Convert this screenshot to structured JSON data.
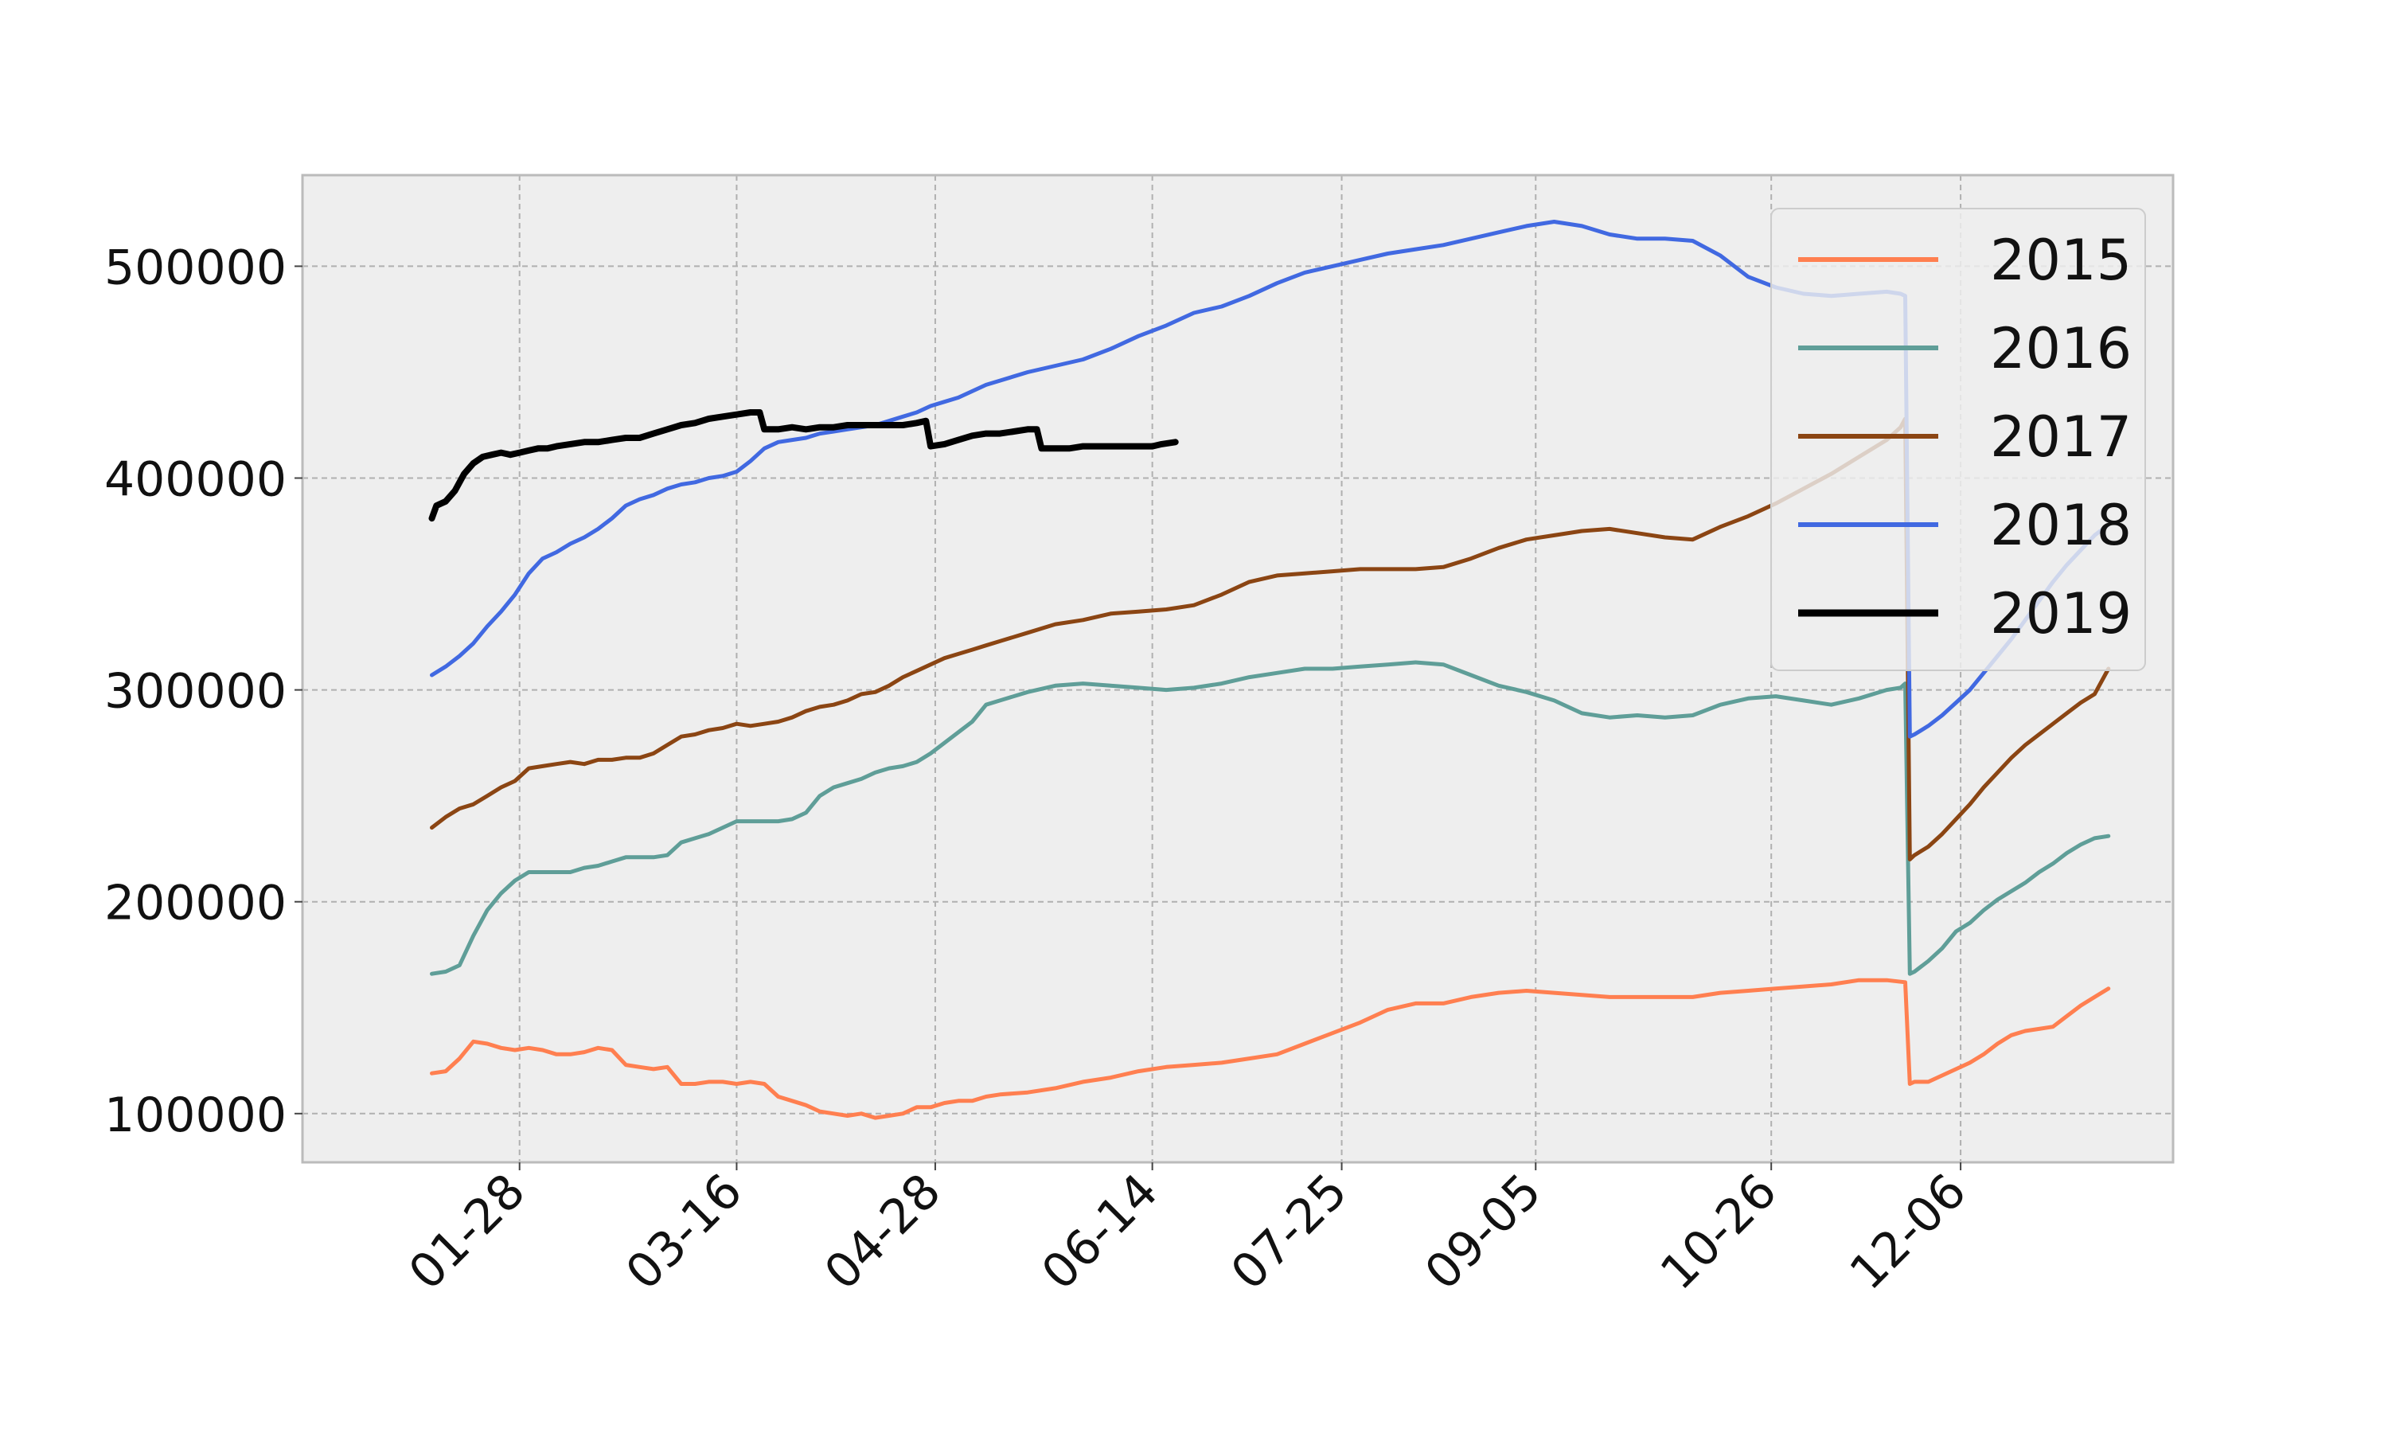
{
  "chart_data": {
    "type": "line",
    "title": "",
    "xlabel": "",
    "ylabel": "",
    "x_tick_labels": [
      "01-28",
      "03-16",
      "04-28",
      "06-14",
      "07-25",
      "09-05",
      "10-26",
      "12-06"
    ],
    "x_tick_days": [
      28,
      75,
      118,
      165,
      206,
      248,
      299,
      340
    ],
    "xlim_days": [
      -19,
      386
    ],
    "y_ticks": [
      100000,
      200000,
      300000,
      400000,
      500000
    ],
    "y_tick_labels": [
      "100000",
      "200000",
      "300000",
      "400000",
      "500000"
    ],
    "ylim": [
      77000,
      543000
    ],
    "grid": true,
    "legend_position": "upper right",
    "background_color": "#eeeeee",
    "series": [
      {
        "name": "2015",
        "color": "#ff7f50",
        "x_days": [
          9,
          12,
          15,
          18,
          21,
          24,
          27,
          30,
          33,
          36,
          39,
          42,
          45,
          48,
          51,
          54,
          57,
          60,
          63,
          66,
          69,
          72,
          75,
          78,
          81,
          84,
          87,
          90,
          93,
          96,
          99,
          102,
          105,
          108,
          111,
          114,
          117,
          120,
          123,
          126,
          129,
          132,
          138,
          144,
          150,
          156,
          162,
          168,
          174,
          180,
          186,
          192,
          198,
          204,
          210,
          216,
          222,
          228,
          234,
          240,
          246,
          252,
          258,
          264,
          270,
          276,
          282,
          288,
          294,
          300,
          306,
          312,
          318,
          324,
          328,
          329,
          330,
          333,
          336,
          339,
          342,
          345,
          348,
          351,
          354,
          357,
          360,
          363,
          366,
          369,
          372
        ],
        "values": [
          119000,
          120000,
          126000,
          134000,
          133000,
          131000,
          130000,
          131000,
          130000,
          128000,
          128000,
          129000,
          131000,
          130000,
          123000,
          122000,
          121000,
          122000,
          114000,
          114000,
          115000,
          115000,
          114000,
          115000,
          114000,
          108000,
          106000,
          104000,
          101000,
          100000,
          99000,
          100000,
          98000,
          99000,
          100000,
          103000,
          103000,
          105000,
          106000,
          106000,
          108000,
          109000,
          110000,
          112000,
          115000,
          117000,
          120000,
          122000,
          123000,
          124000,
          126000,
          128000,
          133000,
          138000,
          143000,
          149000,
          152000,
          152000,
          155000,
          157000,
          158000,
          157000,
          156000,
          155000,
          155000,
          155000,
          155000,
          157000,
          158000,
          159000,
          160000,
          161000,
          163000,
          163000,
          162000,
          114000,
          115000,
          115000,
          118000,
          121000,
          124000,
          128000,
          133000,
          137000,
          139000,
          140000,
          141000,
          146000,
          151000,
          155000,
          159000
        ]
      },
      {
        "name": "2016",
        "color": "#5f9e98",
        "x_days": [
          9,
          12,
          15,
          18,
          21,
          24,
          27,
          30,
          33,
          36,
          39,
          42,
          45,
          48,
          51,
          54,
          57,
          60,
          63,
          66,
          69,
          72,
          75,
          78,
          81,
          84,
          87,
          90,
          93,
          96,
          99,
          102,
          105,
          108,
          111,
          114,
          117,
          120,
          123,
          126,
          129,
          132,
          138,
          144,
          150,
          156,
          162,
          168,
          174,
          180,
          186,
          192,
          198,
          204,
          210,
          216,
          222,
          228,
          234,
          240,
          246,
          252,
          258,
          264,
          270,
          276,
          282,
          288,
          294,
          300,
          306,
          312,
          318,
          324,
          327,
          328,
          329,
          330,
          333,
          336,
          339,
          342,
          345,
          348,
          351,
          354,
          357,
          360,
          363,
          366,
          369,
          372
        ],
        "values": [
          166000,
          167000,
          170000,
          184000,
          196000,
          204000,
          210000,
          214000,
          214000,
          214000,
          214000,
          216000,
          217000,
          219000,
          221000,
          221000,
          221000,
          222000,
          228000,
          230000,
          232000,
          235000,
          238000,
          238000,
          238000,
          238000,
          239000,
          242000,
          250000,
          254000,
          256000,
          258000,
          261000,
          263000,
          264000,
          266000,
          270000,
          275000,
          280000,
          285000,
          293000,
          295000,
          299000,
          302000,
          303000,
          302000,
          301000,
          300000,
          301000,
          303000,
          306000,
          308000,
          310000,
          310000,
          311000,
          312000,
          313000,
          312000,
          307000,
          302000,
          299000,
          295000,
          289000,
          287000,
          288000,
          287000,
          288000,
          293000,
          296000,
          297000,
          295000,
          293000,
          296000,
          300000,
          301000,
          303000,
          166000,
          167000,
          172000,
          178000,
          186000,
          190000,
          196000,
          201000,
          205000,
          209000,
          214000,
          218000,
          223000,
          227000,
          230000,
          231000
        ]
      },
      {
        "name": "2017",
        "color": "#8b4513",
        "x_days": [
          9,
          12,
          15,
          18,
          21,
          24,
          27,
          30,
          33,
          36,
          39,
          42,
          45,
          48,
          51,
          54,
          57,
          60,
          63,
          66,
          69,
          72,
          75,
          78,
          81,
          84,
          87,
          90,
          93,
          96,
          99,
          102,
          105,
          108,
          111,
          114,
          117,
          120,
          123,
          126,
          129,
          132,
          138,
          144,
          150,
          156,
          162,
          168,
          174,
          180,
          186,
          192,
          198,
          204,
          210,
          216,
          222,
          228,
          234,
          240,
          246,
          252,
          258,
          264,
          270,
          276,
          282,
          288,
          294,
          300,
          306,
          312,
          318,
          324,
          327,
          328,
          329,
          330,
          333,
          336,
          339,
          342,
          345,
          348,
          351,
          354,
          357,
          360,
          363,
          366,
          369,
          372
        ],
        "values": [
          235000,
          240000,
          244000,
          246000,
          250000,
          254000,
          257000,
          263000,
          264000,
          265000,
          266000,
          265000,
          267000,
          267000,
          268000,
          268000,
          270000,
          274000,
          278000,
          279000,
          281000,
          282000,
          284000,
          283000,
          284000,
          285000,
          287000,
          290000,
          292000,
          293000,
          295000,
          298000,
          299000,
          302000,
          306000,
          309000,
          312000,
          315000,
          317000,
          319000,
          321000,
          323000,
          327000,
          331000,
          333000,
          336000,
          337000,
          338000,
          340000,
          345000,
          351000,
          354000,
          355000,
          356000,
          357000,
          357000,
          357000,
          358000,
          362000,
          367000,
          371000,
          373000,
          375000,
          376000,
          374000,
          372000,
          371000,
          377000,
          382000,
          388000,
          395000,
          402000,
          410000,
          418000,
          424000,
          428000,
          220000,
          222000,
          226000,
          232000,
          239000,
          246000,
          254000,
          261000,
          268000,
          274000,
          279000,
          284000,
          289000,
          294000,
          298000,
          310000
        ]
      },
      {
        "name": "2018",
        "color": "#4169e1",
        "x_days": [
          9,
          12,
          15,
          18,
          21,
          24,
          27,
          30,
          33,
          36,
          39,
          42,
          45,
          48,
          51,
          54,
          57,
          60,
          63,
          66,
          69,
          72,
          75,
          78,
          81,
          84,
          87,
          90,
          93,
          96,
          99,
          102,
          105,
          108,
          111,
          114,
          117,
          120,
          123,
          126,
          129,
          132,
          138,
          144,
          150,
          156,
          162,
          168,
          174,
          180,
          186,
          192,
          198,
          204,
          210,
          216,
          222,
          228,
          234,
          240,
          246,
          252,
          258,
          264,
          270,
          276,
          282,
          288,
          294,
          300,
          306,
          312,
          318,
          324,
          327,
          328,
          329,
          330,
          333,
          336,
          339,
          342,
          345,
          348,
          351,
          354,
          357,
          360,
          363,
          366,
          369,
          372
        ],
        "values": [
          307000,
          311000,
          316000,
          322000,
          330000,
          337000,
          345000,
          355000,
          362000,
          365000,
          369000,
          372000,
          376000,
          381000,
          387000,
          390000,
          392000,
          395000,
          397000,
          398000,
          400000,
          401000,
          403000,
          408000,
          414000,
          417000,
          418000,
          419000,
          421000,
          422000,
          423000,
          424000,
          425000,
          427000,
          429000,
          431000,
          434000,
          436000,
          438000,
          441000,
          444000,
          446000,
          450000,
          453000,
          456000,
          461000,
          467000,
          472000,
          478000,
          481000,
          486000,
          492000,
          497000,
          500000,
          503000,
          506000,
          508000,
          510000,
          513000,
          516000,
          519000,
          521000,
          519000,
          515000,
          513000,
          513000,
          512000,
          505000,
          495000,
          490000,
          487000,
          486000,
          487000,
          488000,
          487000,
          486000,
          278000,
          279000,
          283000,
          288000,
          294000,
          300000,
          308000,
          316000,
          324000,
          333000,
          342000,
          351000,
          359000,
          366000,
          373000,
          378000
        ]
      },
      {
        "name": "2019",
        "color": "#000000",
        "x_days": [
          9,
          10,
          12,
          14,
          16,
          18,
          20,
          22,
          24,
          26,
          28,
          30,
          32,
          34,
          36,
          39,
          42,
          45,
          48,
          51,
          54,
          57,
          60,
          63,
          66,
          69,
          72,
          75,
          78,
          80,
          81,
          84,
          87,
          90,
          93,
          96,
          99,
          102,
          105,
          108,
          111,
          114,
          116,
          117,
          120,
          123,
          126,
          129,
          132,
          135,
          138,
          140,
          141,
          144,
          147,
          150,
          153,
          156,
          159,
          162,
          165,
          167,
          170
        ],
        "values": [
          381000,
          387000,
          389000,
          394000,
          402000,
          407000,
          410000,
          411000,
          412000,
          411000,
          412000,
          413000,
          414000,
          414000,
          415000,
          416000,
          417000,
          417000,
          418000,
          419000,
          419000,
          421000,
          423000,
          425000,
          426000,
          428000,
          429000,
          430000,
          431000,
          431000,
          423000,
          423000,
          424000,
          423000,
          424000,
          424000,
          425000,
          425000,
          425000,
          425000,
          425000,
          426000,
          427000,
          415000,
          416000,
          418000,
          420000,
          421000,
          421000,
          422000,
          423000,
          423000,
          414000,
          414000,
          414000,
          415000,
          415000,
          415000,
          415000,
          415000,
          415000,
          416000,
          417000
        ]
      }
    ]
  }
}
